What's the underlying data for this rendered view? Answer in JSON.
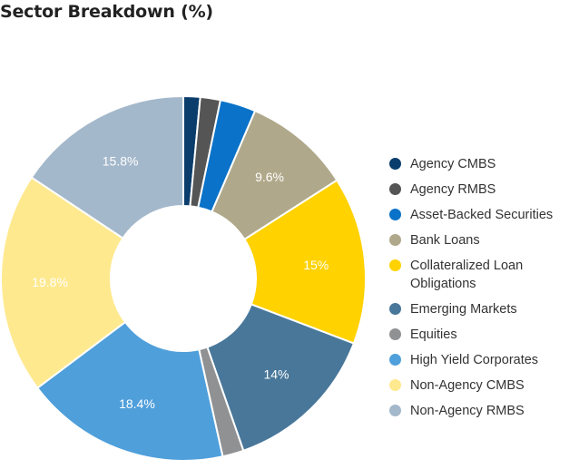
{
  "chart_data": {
    "type": "pie",
    "title": "Sector Breakdown (%)",
    "donut": true,
    "legend_position": "right",
    "slices": [
      {
        "name": "Agency CMBS",
        "value": 1.5,
        "label": "",
        "color": "#0a3d6b"
      },
      {
        "name": "Agency RMBS",
        "value": 1.8,
        "label": "",
        "color": "#555555"
      },
      {
        "name": "Asset-Backed Securities",
        "value": 3.2,
        "label": "",
        "color": "#0a72c8"
      },
      {
        "name": "Bank Loans",
        "value": 9.6,
        "label": "9.6%",
        "color": "#b0a88a"
      },
      {
        "name": "Collateralized Loan Obligations",
        "value": 15,
        "label": "15%",
        "color": "#ffd200"
      },
      {
        "name": "Emerging Markets",
        "value": 14,
        "label": "14%",
        "color": "#48779a"
      },
      {
        "name": "Equities",
        "value": 1.9,
        "label": "",
        "color": "#8f9193"
      },
      {
        "name": "High Yield Corporates",
        "value": 18.4,
        "label": "18.4%",
        "color": "#4f9fdb"
      },
      {
        "name": "Non-Agency CMBS",
        "value": 19.8,
        "label": "19.8%",
        "color": "#ffe98f"
      },
      {
        "name": "Non-Agency RMBS",
        "value": 15.8,
        "label": "15.8%",
        "color": "#a4b8cb"
      }
    ]
  }
}
